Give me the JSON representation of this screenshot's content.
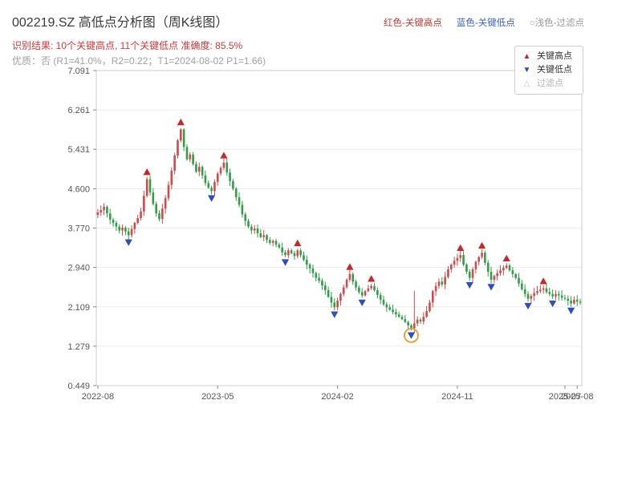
{
  "header": {
    "title": "002219.SZ 高低点分析图（周K线图）",
    "legend_top": [
      {
        "label": "红色-关键高点",
        "color": "#c0392b"
      },
      {
        "label": "蓝色-关键低点",
        "color": "#3a5fc8"
      },
      {
        "label": "○浅色-过滤点",
        "color": "#9a9a9a"
      }
    ],
    "result_line": "识别结果: 10个关键高点, 11个关键低点  准确度: 85.5%",
    "result_color": "#cf3b3b",
    "quality_line": "优质：否 (R1=41.0%，R2=0.22；T1=2024-08-02 P1=1.66)"
  },
  "chart_legend": {
    "items": [
      {
        "icon": "red-up-triangle-icon",
        "glyph": "▲",
        "color": "#c62828",
        "label": "关键高点",
        "text_color": "#333333"
      },
      {
        "icon": "blue-down-triangle-icon",
        "glyph": "▼",
        "color": "#2c4ebf",
        "label": "关键低点",
        "text_color": "#333333"
      },
      {
        "icon": "hollow-up-triangle-icon",
        "glyph": "△",
        "color": "#c2c2c2",
        "label": "过滤点",
        "text_color": "#b3b3b3"
      }
    ]
  },
  "chart_data": {
    "type": "candlestick",
    "title": "002219.SZ weekly K-line with key high/low points",
    "interval": "weekly",
    "ylim": [
      0.449,
      7.091
    ],
    "y_ticks": [
      7.091,
      6.261,
      5.431,
      4.6,
      3.77,
      2.94,
      2.109,
      1.279,
      0.449
    ],
    "x_ticks": [
      {
        "label": "2022-08",
        "week": 0
      },
      {
        "label": "2023-05",
        "week": 39
      },
      {
        "label": "2024-02",
        "week": 78
      },
      {
        "label": "2024-11",
        "week": 117
      },
      {
        "label": "2025-07",
        "week": 152
      },
      {
        "label": "2025-08",
        "week": 156
      }
    ],
    "closes": [
      4.1,
      4.15,
      4.22,
      4.08,
      3.95,
      3.88,
      3.8,
      3.72,
      3.78,
      3.7,
      3.62,
      3.75,
      3.88,
      3.98,
      4.12,
      4.45,
      4.8,
      4.52,
      4.28,
      4.08,
      3.96,
      4.18,
      4.4,
      4.68,
      4.98,
      5.3,
      5.62,
      5.85,
      5.48,
      5.22,
      5.32,
      5.12,
      4.96,
      5.06,
      4.88,
      4.72,
      4.62,
      4.55,
      4.74,
      4.92,
      5.04,
      5.15,
      4.94,
      4.76,
      4.6,
      4.42,
      4.26,
      4.06,
      3.92,
      3.8,
      3.72,
      3.76,
      3.66,
      3.58,
      3.62,
      3.52,
      3.46,
      3.5,
      3.42,
      3.36,
      3.26,
      3.2,
      3.3,
      3.24,
      3.18,
      3.3,
      3.2,
      3.1,
      3.0,
      2.92,
      2.82,
      2.72,
      2.66,
      2.56,
      2.46,
      2.32,
      2.2,
      2.1,
      2.24,
      2.38,
      2.52,
      2.68,
      2.8,
      2.64,
      2.52,
      2.42,
      2.35,
      2.44,
      2.5,
      2.55,
      2.46,
      2.36,
      2.26,
      2.16,
      2.1,
      2.05,
      2.0,
      1.95,
      1.9,
      1.85,
      1.79,
      1.72,
      1.66,
      1.76,
      1.84,
      1.8,
      1.9,
      2.02,
      2.2,
      2.44,
      2.55,
      2.64,
      2.58,
      2.74,
      2.9,
      3.0,
      3.08,
      3.14,
      3.2,
      3.0,
      2.85,
      2.72,
      2.9,
      3.06,
      3.16,
      3.25,
      3.04,
      2.85,
      2.68,
      2.76,
      2.82,
      2.88,
      2.93,
      2.98,
      2.88,
      2.8,
      2.72,
      2.6,
      2.48,
      2.38,
      2.28,
      2.34,
      2.4,
      2.44,
      2.47,
      2.5,
      2.42,
      2.38,
      2.33,
      2.38,
      2.35,
      2.3,
      2.28,
      2.24,
      2.18,
      2.26,
      2.22,
      2.2
    ],
    "key_highs": [
      {
        "week": 16,
        "price": 4.8
      },
      {
        "week": 27,
        "price": 5.85
      },
      {
        "week": 41,
        "price": 5.15
      },
      {
        "week": 65,
        "price": 3.3
      },
      {
        "week": 82,
        "price": 2.8
      },
      {
        "week": 89,
        "price": 2.55
      },
      {
        "week": 118,
        "price": 3.2
      },
      {
        "week": 125,
        "price": 3.25
      },
      {
        "week": 133,
        "price": 2.98
      },
      {
        "week": 145,
        "price": 2.5
      }
    ],
    "key_lows": [
      {
        "week": 10,
        "price": 3.62
      },
      {
        "week": 37,
        "price": 4.55
      },
      {
        "week": 61,
        "price": 3.2
      },
      {
        "week": 77,
        "price": 2.1
      },
      {
        "week": 86,
        "price": 2.35
      },
      {
        "week": 102,
        "price": 1.66
      },
      {
        "week": 121,
        "price": 2.72
      },
      {
        "week": 128,
        "price": 2.68
      },
      {
        "week": 140,
        "price": 2.28
      },
      {
        "week": 148,
        "price": 2.33
      },
      {
        "week": 154,
        "price": 2.18
      }
    ],
    "filtered_point": {
      "week": 102,
      "price": 1.66
    },
    "spikes": [
      {
        "week": 103,
        "high": 2.45
      }
    ],
    "up_color": "#cf4a4a",
    "down_color": "#2f9e44",
    "key_high_color": "#c62828",
    "key_low_color": "#2c4ebf",
    "filtered_circle_color": "#e8a33d",
    "axis_color": "#555555",
    "grid_color": "#ececec",
    "border_color": "#cccccc"
  }
}
